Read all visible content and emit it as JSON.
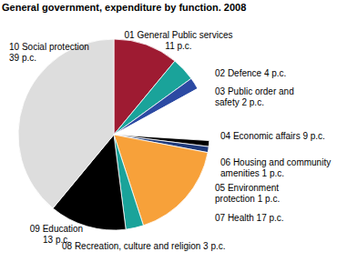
{
  "chart_data": {
    "type": "pie",
    "title": "General government, expenditure by function. 2008",
    "categories": [
      "01 General Public services",
      "02 Defence",
      "03 Public order and safety",
      "04 Economic affairs",
      "06 Housing and community amenities",
      "05 Environment protection",
      "07 Health",
      "08 Recreation, culture and religion",
      "09 Education",
      "10 Social protection"
    ],
    "values": [
      11,
      4,
      2,
      9,
      1,
      1,
      17,
      3,
      13,
      39
    ],
    "value_labels": [
      "11 p.c.",
      "4 p.c.",
      "2 p.c.",
      "9 p.c.",
      "1 p.c.",
      "1 p.c.",
      "17 p.c.",
      "3 p.c.",
      "13 p.c.",
      "39 p.c."
    ],
    "colors": [
      "#9e1b32",
      "#1aa39a",
      "#2c4aa3",
      "#ffffff",
      "#000000",
      "#1f3a7a",
      "#f7a13a",
      "#1aa39a",
      "#000000",
      "#dddddd"
    ],
    "data_labels": true
  }
}
